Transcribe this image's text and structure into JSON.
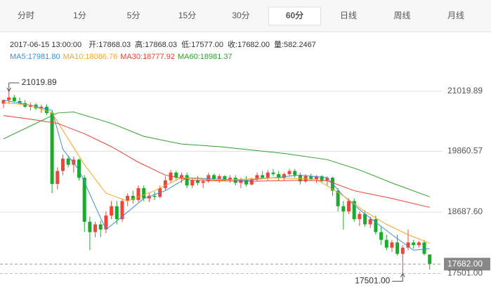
{
  "tabs": {
    "items": [
      "分时",
      "1分",
      "5分",
      "15分",
      "30分",
      "60分",
      "日线",
      "周线",
      "月线"
    ],
    "active": 5
  },
  "info": {
    "time": "2017-06-15 13:00:00",
    "fields": [
      {
        "label": "开:",
        "value": "17868.03"
      },
      {
        "label": "高:",
        "value": "17868.03"
      },
      {
        "label": "低:",
        "value": "17577.00"
      },
      {
        "label": "收:",
        "value": "17682.00"
      },
      {
        "label": "量:",
        "value": "582.2467"
      }
    ],
    "ma": [
      {
        "label": "MA5:",
        "value": "17981.80",
        "color": "#3a8fd8"
      },
      {
        "label": "MA10:",
        "value": "18086.76",
        "color": "#f5a623"
      },
      {
        "label": "MA30:",
        "value": "18777.92",
        "color": "#e8402f"
      },
      {
        "label": "MA60:",
        "value": "18981.37",
        "color": "#2fa12f"
      }
    ]
  },
  "chart_data": {
    "type": "candlestick",
    "ylim": [
      17250,
      21494
    ],
    "yticks": [
      21019.89,
      19860.57,
      {
        "value": 18687.6,
        "label": "18687.60"
      }
    ],
    "up_color": "#f0453a",
    "down_color": "#1aab2a",
    "open": [
      20780,
      20850,
      20900,
      20830,
      20790,
      20720,
      20760,
      20690,
      20720,
      20600,
      19230,
      19480,
      19720,
      19600,
      19700,
      19350,
      18500,
      18300,
      18450,
      18350,
      18620,
      18800,
      18550,
      18900,
      19000,
      18920,
      19150,
      18950,
      19000,
      18980,
      19150,
      19300,
      19450,
      19350,
      19400,
      19200,
      19300,
      19250,
      19280,
      19400,
      19330,
      19380,
      19300,
      19350,
      19250,
      19300,
      19220,
      19320,
      19400,
      19350,
      19450,
      19420,
      19350,
      19420,
      19480,
      19400,
      19280,
      19380,
      19320,
      19380,
      19300,
      19350,
      19100,
      18800,
      18700,
      18900,
      18550,
      18650,
      18450,
      18550,
      18300,
      18150,
      18000,
      18100,
      17880,
      18000,
      18100,
      18050,
      18100,
      17868.03
    ],
    "high": [
      20860,
      21019.89,
      20950,
      20900,
      20850,
      20800,
      20790,
      20760,
      20770,
      20650,
      19550,
      19800,
      19780,
      19760,
      19720,
      19400,
      18600,
      18500,
      18520,
      18700,
      18900,
      18900,
      18950,
      19050,
      19100,
      19200,
      19200,
      19050,
      19080,
      19200,
      19380,
      19500,
      19480,
      19450,
      19450,
      19350,
      19380,
      19320,
      19450,
      19430,
      19420,
      19400,
      19400,
      19400,
      19350,
      19380,
      19350,
      19450,
      19480,
      19500,
      19520,
      19480,
      19450,
      19520,
      19520,
      19450,
      19420,
      19430,
      19400,
      19400,
      19380,
      19370,
      19150,
      18900,
      18950,
      18950,
      18700,
      18720,
      18600,
      18620,
      18400,
      18250,
      18150,
      18250,
      18050,
      18350,
      18150,
      18130,
      18150,
      17868.03
    ],
    "low": [
      20690,
      20780,
      20800,
      20760,
      20700,
      20650,
      20660,
      20600,
      20560,
      19050,
      19120,
      19400,
      19550,
      19450,
      19300,
      18300,
      17950,
      18200,
      18200,
      18280,
      18550,
      18450,
      18500,
      18800,
      18850,
      18880,
      18900,
      18880,
      18920,
      18950,
      19100,
      19250,
      19300,
      19250,
      19150,
      19150,
      19200,
      19150,
      19250,
      19300,
      19250,
      19280,
      19250,
      19200,
      19150,
      19180,
      19200,
      19280,
      19320,
      19300,
      19380,
      19300,
      19300,
      19380,
      19350,
      19220,
      19250,
      19300,
      19250,
      19250,
      19200,
      19000,
      18700,
      18350,
      18650,
      18500,
      18420,
      18400,
      18380,
      18250,
      18050,
      17950,
      17920,
      17850,
      17501,
      17950,
      17980,
      18000,
      17850,
      17577
    ],
    "close": [
      20850,
      20900,
      20830,
      20790,
      20720,
      20760,
      20690,
      20720,
      20600,
      19230,
      19480,
      19720,
      19600,
      19700,
      19350,
      18500,
      18300,
      18450,
      18350,
      18620,
      18800,
      18550,
      18900,
      19000,
      18920,
      19150,
      18950,
      19000,
      18980,
      19150,
      19300,
      19450,
      19350,
      19400,
      19200,
      19300,
      19250,
      19280,
      19400,
      19330,
      19380,
      19300,
      19350,
      19250,
      19300,
      19220,
      19320,
      19400,
      19350,
      19450,
      19420,
      19350,
      19420,
      19480,
      19400,
      19280,
      19380,
      19320,
      19380,
      19300,
      19350,
      19100,
      18800,
      18700,
      18900,
      18550,
      18650,
      18450,
      18550,
      18300,
      18150,
      18000,
      18100,
      17880,
      18000,
      18100,
      18050,
      18100,
      17880,
      17682
    ],
    "ma_lines": [
      {
        "x": [
          0,
          5,
          9,
          11,
          14,
          17,
          19,
          22,
          26,
          30,
          34,
          45,
          55,
          60,
          63,
          67,
          72,
          76,
          79
        ],
        "values": [
          20850,
          20750,
          20650,
          19900,
          19500,
          18800,
          18350,
          18600,
          18950,
          19100,
          19350,
          19300,
          19400,
          19350,
          19000,
          18650,
          18250,
          17950,
          17981.8
        ]
      },
      {
        "x": [
          0,
          5,
          9,
          12,
          15,
          19,
          23,
          28,
          33,
          40,
          50,
          58,
          63,
          67,
          71,
          75,
          79
        ],
        "values": [
          20800,
          20750,
          20600,
          20100,
          19600,
          19050,
          18900,
          19100,
          19350,
          19300,
          19350,
          19320,
          19000,
          18700,
          18450,
          18250,
          18086.76
        ]
      },
      {
        "x": [
          0,
          5,
          10,
          15,
          20,
          25,
          30,
          35,
          45,
          55,
          60,
          65,
          72,
          79
        ],
        "values": [
          20550,
          20480,
          20400,
          20200,
          19950,
          19650,
          19400,
          19300,
          19280,
          19300,
          19290,
          19100,
          18950,
          18777.92
        ]
      },
      {
        "x": [
          0,
          5,
          10,
          13,
          20,
          26,
          33,
          40,
          52,
          60,
          66,
          72,
          79
        ],
        "values": [
          20100,
          20350,
          20600,
          20620,
          20400,
          20150,
          20000,
          19950,
          19820,
          19700,
          19500,
          19250,
          18981.37
        ]
      }
    ],
    "current_price": {
      "value": 17682,
      "label": "17682.00"
    },
    "high_annotation": {
      "value": 21019.89,
      "index": 1
    },
    "low_annotation": {
      "value": 17501,
      "label": "17501.00",
      "index": 74
    }
  }
}
